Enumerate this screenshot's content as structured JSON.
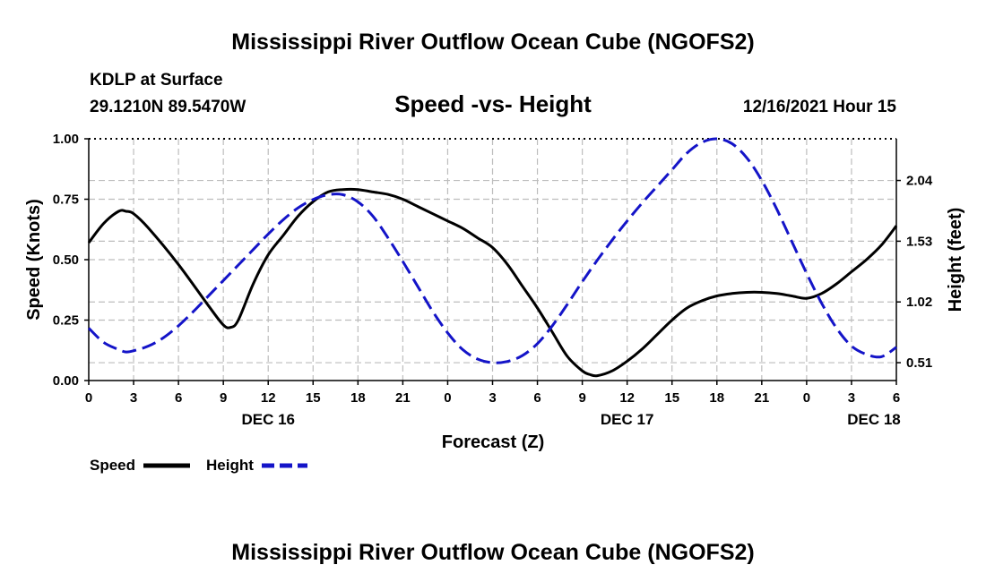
{
  "chart_data": {
    "type": "line",
    "title": "Mississippi River Outflow Ocean Cube (NGOFS2)",
    "subtitle": "Speed -vs- Height",
    "station": "KDLP at Surface",
    "location": "29.1210N  89.5470W",
    "run": "12/16/2021 Hour 15",
    "footer_title": "Mississippi River Outflow Ocean Cube (NGOFS2)",
    "xlabel": "Forecast (Z)",
    "ylabel_left": "Speed (Knots)",
    "ylabel_right": "Height (feet)",
    "xlim": [
      0,
      54
    ],
    "x_ticks": [
      {
        "x": 0,
        "label": "0"
      },
      {
        "x": 3,
        "label": "3"
      },
      {
        "x": 6,
        "label": "6"
      },
      {
        "x": 9,
        "label": "9"
      },
      {
        "x": 12,
        "label": "12"
      },
      {
        "x": 15,
        "label": "15"
      },
      {
        "x": 18,
        "label": "18"
      },
      {
        "x": 21,
        "label": "21"
      },
      {
        "x": 24,
        "label": "0"
      },
      {
        "x": 27,
        "label": "3"
      },
      {
        "x": 30,
        "label": "6"
      },
      {
        "x": 33,
        "label": "9"
      },
      {
        "x": 36,
        "label": "12"
      },
      {
        "x": 39,
        "label": "15"
      },
      {
        "x": 42,
        "label": "18"
      },
      {
        "x": 45,
        "label": "21"
      },
      {
        "x": 48,
        "label": "0"
      },
      {
        "x": 51,
        "label": "3"
      },
      {
        "x": 54,
        "label": "6"
      }
    ],
    "date_labels": [
      {
        "x": 12,
        "label": "DEC 16"
      },
      {
        "x": 36,
        "label": "DEC 17"
      },
      {
        "x": 52.5,
        "label": "DEC 18"
      }
    ],
    "ylim_left": [
      0,
      1
    ],
    "left_ticks": [
      {
        "y": 0,
        "label": "0.00"
      },
      {
        "y": 0.25,
        "label": "0.25"
      },
      {
        "y": 0.5,
        "label": "0.50"
      },
      {
        "y": 0.75,
        "label": "0.75"
      },
      {
        "y": 1.0,
        "label": "1.00"
      }
    ],
    "ylim_right": [
      0.36,
      2.39
    ],
    "right_ticks": [
      {
        "y": 0.51,
        "label": "0.51"
      },
      {
        "y": 1.02,
        "label": "1.02"
      },
      {
        "y": 1.53,
        "label": "1.53"
      },
      {
        "y": 2.04,
        "label": "2.04"
      }
    ],
    "series": [
      {
        "name": "Speed",
        "axis": "left",
        "color": "#000000",
        "dash": "solid",
        "x": [
          0,
          1,
          2,
          2.5,
          3,
          4,
          6,
          8,
          9,
          9.5,
          10,
          11,
          12,
          13,
          14,
          15,
          16,
          17,
          18,
          19,
          20,
          21,
          22,
          23,
          24,
          25,
          26,
          27,
          28,
          29,
          30,
          31,
          32,
          33,
          33.5,
          34,
          35,
          36,
          37,
          38,
          39,
          40,
          41,
          42,
          43,
          44,
          45,
          46,
          47,
          48,
          49,
          50,
          51,
          52,
          53,
          54
        ],
        "values": [
          0.57,
          0.65,
          0.7,
          0.7,
          0.69,
          0.63,
          0.48,
          0.31,
          0.23,
          0.22,
          0.25,
          0.4,
          0.52,
          0.6,
          0.68,
          0.74,
          0.78,
          0.79,
          0.79,
          0.78,
          0.77,
          0.75,
          0.72,
          0.69,
          0.66,
          0.63,
          0.59,
          0.55,
          0.48,
          0.39,
          0.3,
          0.2,
          0.1,
          0.04,
          0.025,
          0.02,
          0.04,
          0.08,
          0.13,
          0.19,
          0.25,
          0.3,
          0.33,
          0.35,
          0.36,
          0.365,
          0.365,
          0.36,
          0.35,
          0.34,
          0.36,
          0.4,
          0.45,
          0.5,
          0.56,
          0.64
        ]
      },
      {
        "name": "Height",
        "axis": "right",
        "color": "#1414c8",
        "dash": "dashed",
        "x": [
          0,
          1,
          2,
          2.5,
          3,
          4,
          5,
          6,
          7,
          8,
          9,
          10,
          11,
          12,
          13,
          14,
          15,
          16,
          17,
          18,
          19,
          20,
          21,
          22,
          23,
          24,
          25,
          26,
          27,
          28,
          29,
          30,
          31,
          32,
          33,
          34,
          35,
          36,
          37,
          38,
          39,
          40,
          41,
          42,
          43,
          44,
          45,
          46,
          47,
          48,
          49,
          50,
          51,
          52,
          53,
          54
        ],
        "values": [
          0.8,
          0.68,
          0.62,
          0.6,
          0.61,
          0.65,
          0.72,
          0.82,
          0.94,
          1.07,
          1.2,
          1.33,
          1.46,
          1.59,
          1.71,
          1.81,
          1.88,
          1.92,
          1.92,
          1.86,
          1.74,
          1.56,
          1.36,
          1.15,
          0.94,
          0.76,
          0.62,
          0.54,
          0.51,
          0.52,
          0.57,
          0.67,
          0.82,
          1.0,
          1.19,
          1.37,
          1.54,
          1.7,
          1.85,
          1.99,
          2.13,
          2.27,
          2.36,
          2.39,
          2.35,
          2.23,
          2.04,
          1.8,
          1.53,
          1.26,
          1.01,
          0.8,
          0.65,
          0.58,
          0.56,
          0.64
        ]
      }
    ],
    "legend": [
      {
        "label": "Speed",
        "color": "#000000",
        "dash": "solid"
      },
      {
        "label": "Height",
        "color": "#1414c8",
        "dash": "dashed"
      }
    ],
    "grid": true
  }
}
